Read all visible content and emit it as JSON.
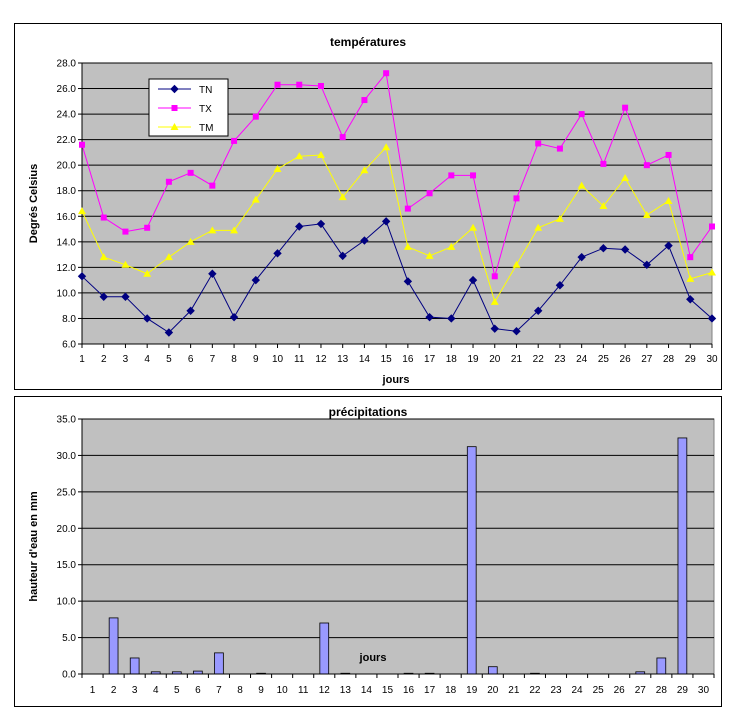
{
  "chart_data": [
    {
      "type": "line",
      "title": "températures",
      "xlabel": "jours",
      "ylabel": "Degrés Celsius",
      "ylim": [
        6,
        28
      ],
      "yticks": [
        "6.0",
        "8.0",
        "10.0",
        "12.0",
        "14.0",
        "16.0",
        "18.0",
        "20.0",
        "22.0",
        "24.0",
        "26.0",
        "28.0"
      ],
      "x": [
        1,
        2,
        3,
        4,
        5,
        6,
        7,
        8,
        9,
        10,
        11,
        12,
        13,
        14,
        15,
        16,
        17,
        18,
        19,
        20,
        21,
        22,
        23,
        24,
        25,
        26,
        27,
        28,
        29,
        30
      ],
      "grid": true,
      "legend_position": "top-left",
      "plot_background": "#c0c0c0",
      "series": [
        {
          "name": "TN",
          "color": "#000080",
          "marker": "diamond",
          "values": [
            11.3,
            9.7,
            9.7,
            8.0,
            6.9,
            8.6,
            11.5,
            8.1,
            11.0,
            13.1,
            15.2,
            15.4,
            12.9,
            14.1,
            15.6,
            10.9,
            8.1,
            8.0,
            11.0,
            7.2,
            7.0,
            8.6,
            10.6,
            12.8,
            13.5,
            13.4,
            12.2,
            13.7,
            9.5,
            8.0
          ]
        },
        {
          "name": "TX",
          "color": "#ff00ff",
          "marker": "square",
          "values": [
            21.6,
            15.9,
            14.8,
            15.1,
            18.7,
            19.4,
            18.4,
            21.9,
            23.8,
            26.3,
            26.3,
            26.2,
            22.2,
            25.1,
            27.2,
            16.6,
            17.8,
            19.2,
            19.2,
            11.3,
            17.4,
            21.7,
            21.3,
            24.0,
            20.1,
            24.5,
            20.0,
            20.8,
            12.8,
            15.2
          ]
        },
        {
          "name": "TM",
          "color": "#ffff00",
          "marker": "triangle",
          "values": [
            16.4,
            12.8,
            12.2,
            11.5,
            12.8,
            14.0,
            14.9,
            14.9,
            17.3,
            19.7,
            20.7,
            20.8,
            17.5,
            19.6,
            21.4,
            13.6,
            12.9,
            13.6,
            15.1,
            9.3,
            12.2,
            15.1,
            15.8,
            18.4,
            16.8,
            19.0,
            16.1,
            17.2,
            11.1,
            11.6
          ]
        }
      ]
    },
    {
      "type": "bar",
      "title": "précipitations",
      "xlabel": "jours",
      "ylabel": "hauteur d'eau en mm",
      "ylim": [
        0,
        35
      ],
      "yticks": [
        "0.0",
        "5.0",
        "10.0",
        "15.0",
        "20.0",
        "25.0",
        "30.0",
        "35.0"
      ],
      "categories": [
        "1",
        "2",
        "3",
        "4",
        "5",
        "6",
        "7",
        "8",
        "9",
        "10",
        "11",
        "12",
        "13",
        "14",
        "15",
        "16",
        "17",
        "18",
        "19",
        "20",
        "21",
        "22",
        "23",
        "24",
        "25",
        "26",
        "27",
        "28",
        "29",
        "30"
      ],
      "values": [
        0,
        7.7,
        2.2,
        0.3,
        0.3,
        0.4,
        2.9,
        0,
        0.1,
        0,
        0,
        7.0,
        0.1,
        0,
        0,
        0.1,
        0.1,
        0,
        31.2,
        1.0,
        0,
        0.1,
        0,
        0,
        0,
        0,
        0.3,
        2.2,
        32.4,
        0
      ],
      "grid": true,
      "plot_background": "#c0c0c0",
      "bar_color": "#9999ff"
    }
  ]
}
